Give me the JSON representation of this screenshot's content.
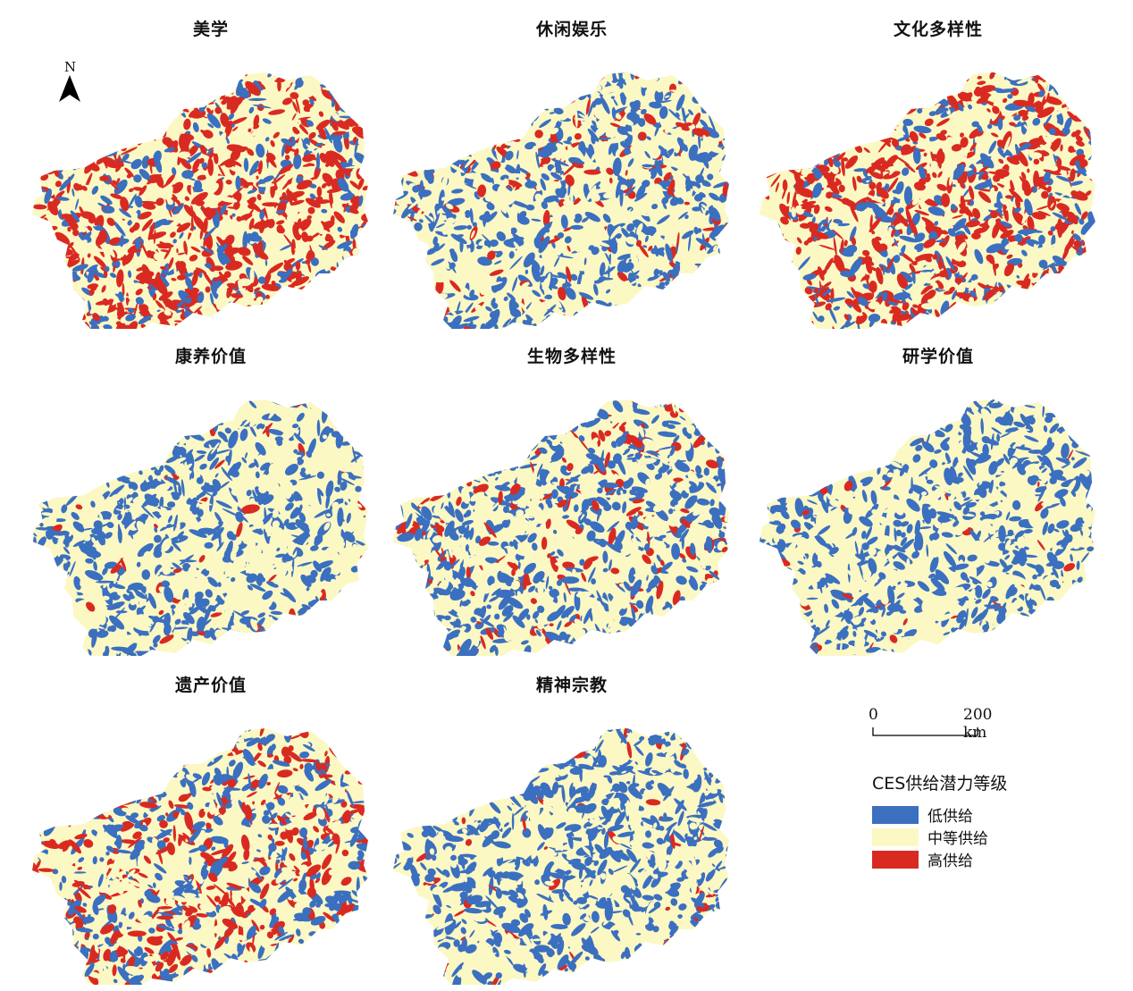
{
  "panels": [
    {
      "title": "美学",
      "mix": [
        0.22,
        0.2,
        0.58
      ]
    },
    {
      "title": "休闲娱乐",
      "mix": [
        0.5,
        0.4,
        0.1
      ]
    },
    {
      "title": "文化多样性",
      "mix": [
        0.28,
        0.22,
        0.5
      ]
    },
    {
      "title": "康养价值",
      "mix": [
        0.52,
        0.45,
        0.03
      ]
    },
    {
      "title": "生物多样性",
      "mix": [
        0.48,
        0.37,
        0.15
      ]
    },
    {
      "title": "研学价值",
      "mix": [
        0.53,
        0.44,
        0.03
      ]
    },
    {
      "title": "遗产价值",
      "mix": [
        0.38,
        0.28,
        0.34
      ]
    },
    {
      "title": "精神宗教",
      "mix": [
        0.58,
        0.39,
        0.03
      ]
    }
  ],
  "north_arrow": {
    "label": "N"
  },
  "scale_bar": {
    "start": "0",
    "end": "200 km"
  },
  "legend": {
    "title": "CES供给潜力等级",
    "items": [
      {
        "label": "低供给",
        "color": "#3b6fbf"
      },
      {
        "label": "中等供给",
        "color": "#fbf8c4"
      },
      {
        "label": "高供给",
        "color": "#d92a22"
      }
    ]
  }
}
